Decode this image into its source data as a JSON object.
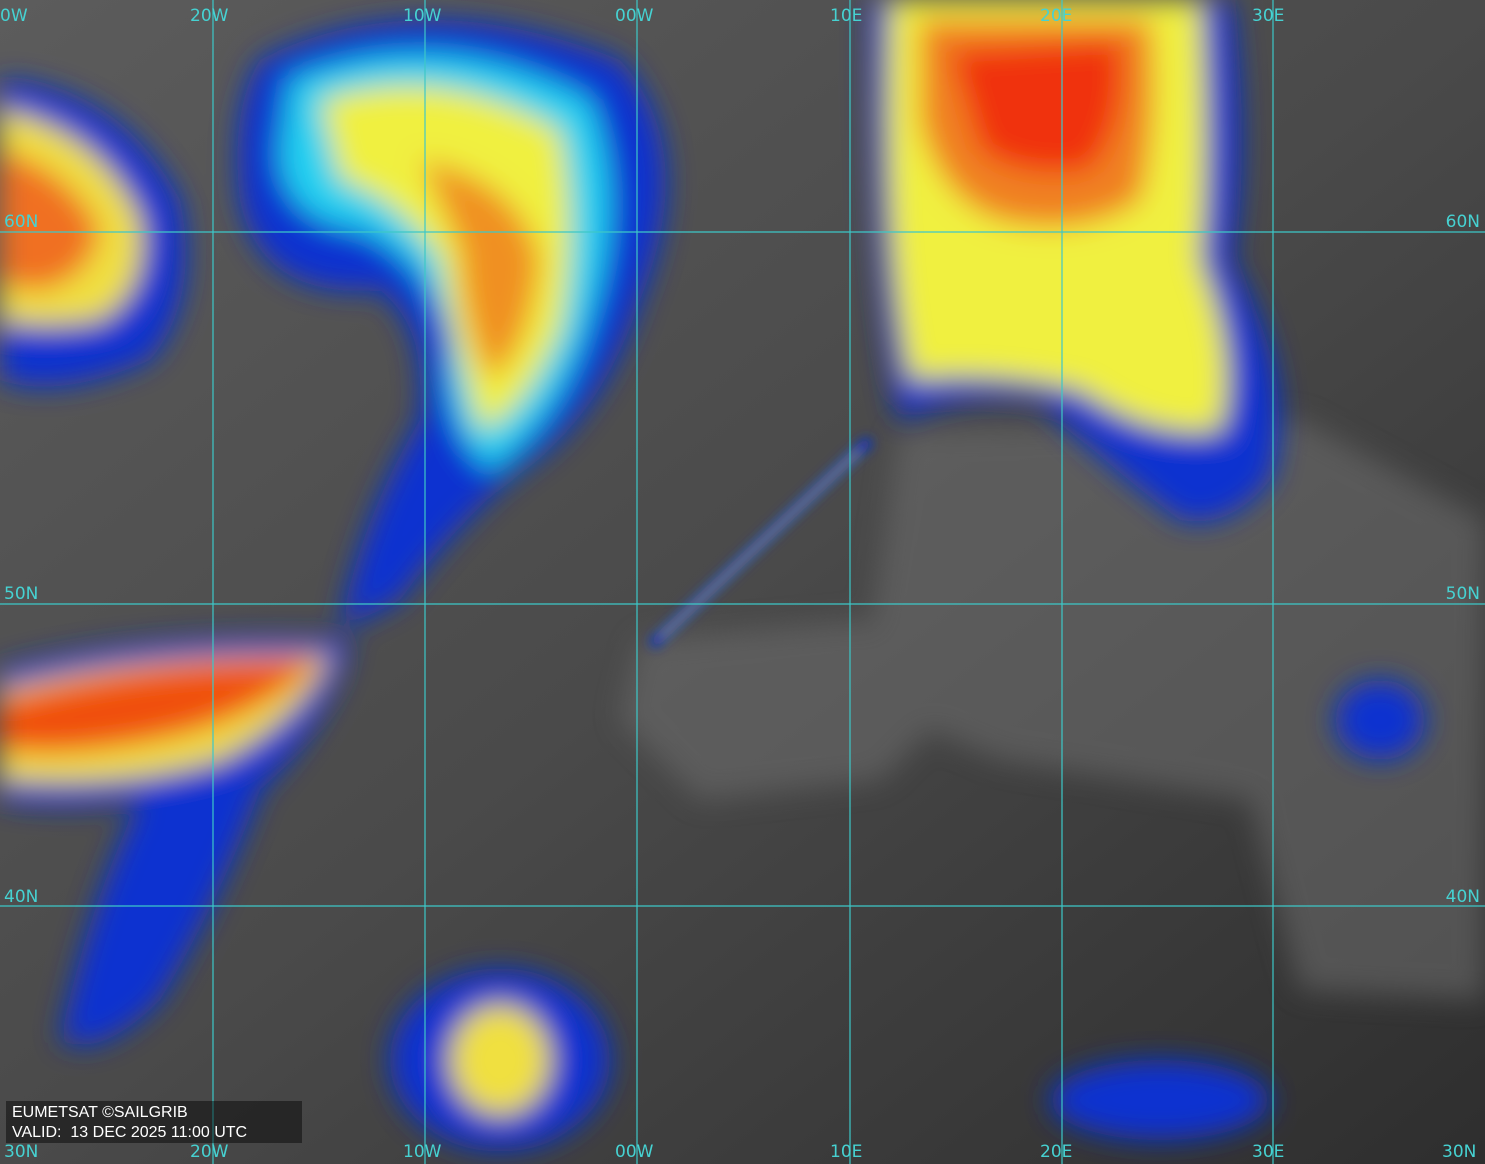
{
  "map": {
    "longitude_labels_top": [
      "0W",
      "20W",
      "10W",
      "00W",
      "10E",
      "20E",
      "30E"
    ],
    "longitude_labels_bottom": [
      "30N",
      "20W",
      "10W",
      "00W",
      "10E",
      "20E",
      "30E",
      "30N"
    ],
    "latitude_labels_left": [
      "60N",
      "50N",
      "40N"
    ],
    "latitude_labels_right": [
      "60N",
      "50N",
      "40N"
    ],
    "credit": {
      "source": "EUMETSAT ©SAILGRIB",
      "valid": "VALID:  13 DEC 2025 11:00 UTC"
    }
  }
}
